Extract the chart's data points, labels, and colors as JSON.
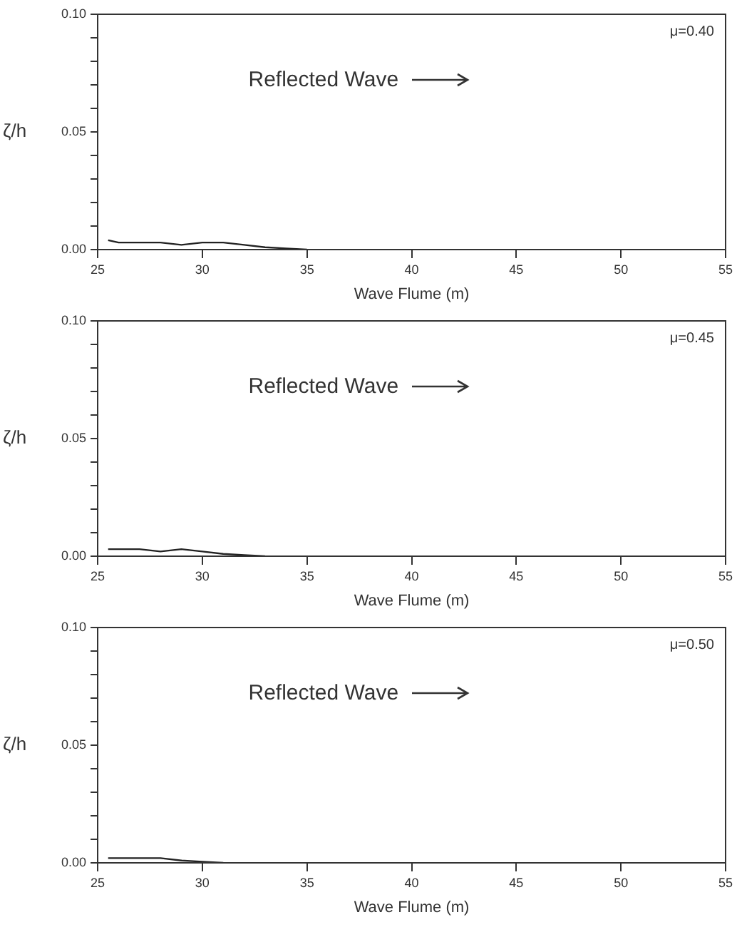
{
  "chart_data": [
    {
      "type": "line",
      "xlabel": "Wave Flume (m)",
      "ylabel": "ζ/h",
      "annotations": [
        "Reflected Wave",
        "μ=0.40"
      ],
      "x": [
        25.5,
        26,
        27,
        28,
        29,
        30,
        31,
        32,
        33,
        34,
        35
      ],
      "series": [
        {
          "color": "#222222",
          "values": [
            0.004,
            0.003,
            0.003,
            0.003,
            0.002,
            0.003,
            0.003,
            0.002,
            0.001,
            0.0005,
            0
          ]
        }
      ],
      "xlim": [
        25,
        55
      ],
      "ylim": [
        0,
        0.1
      ],
      "xticks": [
        25,
        30,
        35,
        40,
        45,
        50,
        55
      ],
      "yticks": [
        {
          "value": 0,
          "label": "0.00"
        },
        {
          "value": 0.01,
          "label": null
        },
        {
          "value": 0.02,
          "label": null
        },
        {
          "value": 0.03,
          "label": null
        },
        {
          "value": 0.04,
          "label": null
        },
        {
          "value": 0.05,
          "label": "0.05"
        },
        {
          "value": 0.06,
          "label": null
        },
        {
          "value": 0.07,
          "label": null
        },
        {
          "value": 0.08,
          "label": null
        },
        {
          "value": 0.09,
          "label": null
        },
        {
          "value": 0.1,
          "label": "0.10"
        }
      ],
      "marker": "none",
      "grid": false,
      "legend": false
    },
    {
      "type": "line",
      "xlabel": "Wave Flume (m)",
      "ylabel": "ζ/h",
      "annotations": [
        "Reflected Wave",
        "μ=0.45"
      ],
      "x": [
        25.5,
        26,
        27,
        28,
        29,
        30,
        31,
        32,
        33
      ],
      "series": [
        {
          "color": "#222222",
          "values": [
            0.003,
            0.003,
            0.003,
            0.002,
            0.003,
            0.002,
            0.001,
            0.0005,
            0
          ]
        }
      ],
      "xlim": [
        25,
        55
      ],
      "ylim": [
        0,
        0.1
      ],
      "xticks": [
        25,
        30,
        35,
        40,
        45,
        50,
        55
      ],
      "yticks": [
        {
          "value": 0,
          "label": "0.00"
        },
        {
          "value": 0.01,
          "label": null
        },
        {
          "value": 0.02,
          "label": null
        },
        {
          "value": 0.03,
          "label": null
        },
        {
          "value": 0.04,
          "label": null
        },
        {
          "value": 0.05,
          "label": "0.05"
        },
        {
          "value": 0.06,
          "label": null
        },
        {
          "value": 0.07,
          "label": null
        },
        {
          "value": 0.08,
          "label": null
        },
        {
          "value": 0.09,
          "label": null
        },
        {
          "value": 0.1,
          "label": "0.10"
        }
      ],
      "marker": "none",
      "grid": false,
      "legend": false
    },
    {
      "type": "line",
      "xlabel": "Wave Flume (m)",
      "ylabel": "ζ/h",
      "annotations": [
        "Reflected Wave",
        "μ=0.50"
      ],
      "x": [
        25.5,
        26,
        27,
        28,
        29,
        30,
        31
      ],
      "series": [
        {
          "color": "#222222",
          "values": [
            0.002,
            0.002,
            0.002,
            0.002,
            0.001,
            0.0005,
            0
          ]
        }
      ],
      "xlim": [
        25,
        55
      ],
      "ylim": [
        0,
        0.1
      ],
      "xticks": [
        25,
        30,
        35,
        40,
        45,
        50,
        55
      ],
      "yticks": [
        {
          "value": 0,
          "label": "0.00"
        },
        {
          "value": 0.01,
          "label": null
        },
        {
          "value": 0.02,
          "label": null
        },
        {
          "value": 0.03,
          "label": null
        },
        {
          "value": 0.04,
          "label": null
        },
        {
          "value": 0.05,
          "label": "0.05"
        },
        {
          "value": 0.06,
          "label": null
        },
        {
          "value": 0.07,
          "label": null
        },
        {
          "value": 0.08,
          "label": null
        },
        {
          "value": 0.09,
          "label": null
        },
        {
          "value": 0.1,
          "label": "0.10"
        }
      ],
      "marker": "none",
      "grid": false,
      "legend": false
    }
  ]
}
